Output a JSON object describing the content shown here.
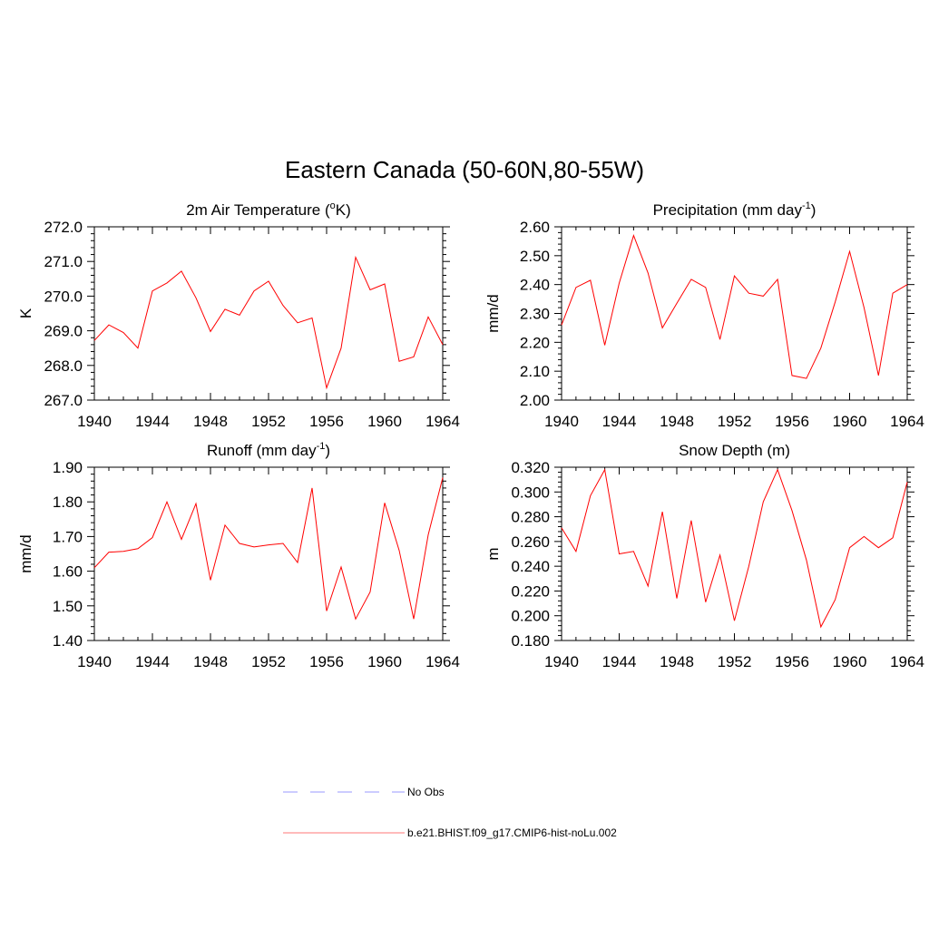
{
  "title": "Eastern Canada (50-60N,80-55W)",
  "legend": {
    "entries": [
      {
        "label": "No Obs",
        "color": "#9999ff",
        "style": "dashed"
      },
      {
        "label": "b.e21.BHIST.f09_g17.CMIP6-hist-noLu.002",
        "color": "#ff7777",
        "style": "solid"
      }
    ]
  },
  "chart_data": [
    {
      "type": "line",
      "title": "2m Air Temperature (°K)",
      "title_parts": [
        "2m Air Temperature (",
        "o",
        "K)"
      ],
      "xlabel": "",
      "ylabel": "K",
      "xlim": [
        1940,
        1964
      ],
      "ylim": [
        267.0,
        272.0
      ],
      "xticks": [
        "1940",
        "1944",
        "1948",
        "1952",
        "1956",
        "1960",
        "1964"
      ],
      "yticks": [
        "267.0",
        "268.0",
        "269.0",
        "270.0",
        "271.0",
        "272.0"
      ],
      "series": [
        {
          "color": "#ff0000",
          "x": [
            1940,
            1941,
            1942,
            1943,
            1944,
            1945,
            1946,
            1947,
            1948,
            1949,
            1950,
            1951,
            1952,
            1953,
            1954,
            1955,
            1956,
            1957,
            1958,
            1959,
            1960,
            1961,
            1962,
            1963,
            1964
          ],
          "y": [
            268.72,
            269.17,
            268.95,
            268.5,
            270.15,
            270.38,
            270.72,
            269.95,
            268.98,
            269.62,
            269.45,
            270.15,
            270.43,
            269.73,
            269.23,
            269.37,
            267.35,
            268.5,
            271.12,
            270.18,
            270.35,
            268.12,
            268.25,
            269.4,
            268.6
          ]
        }
      ]
    },
    {
      "type": "line",
      "title": "Precipitation (mm day-1)",
      "title_parts": [
        "Precipitation (mm day",
        "-1",
        ")"
      ],
      "xlabel": "",
      "ylabel": "mm/d",
      "xlim": [
        1940,
        1964
      ],
      "ylim": [
        2.0,
        2.6
      ],
      "xticks": [
        "1940",
        "1944",
        "1948",
        "1952",
        "1956",
        "1960",
        "1964"
      ],
      "yticks": [
        "2.00",
        "2.10",
        "2.20",
        "2.30",
        "2.40",
        "2.50",
        "2.60"
      ],
      "series": [
        {
          "color": "#ff0000",
          "x": [
            1940,
            1941,
            1942,
            1943,
            1944,
            1945,
            1946,
            1947,
            1948,
            1949,
            1950,
            1951,
            1952,
            1953,
            1954,
            1955,
            1956,
            1957,
            1958,
            1959,
            1960,
            1961,
            1962,
            1963,
            1964
          ],
          "y": [
            2.26,
            2.39,
            2.415,
            2.19,
            2.405,
            2.57,
            2.44,
            2.25,
            2.335,
            2.418,
            2.39,
            2.21,
            2.43,
            2.37,
            2.36,
            2.418,
            2.085,
            2.075,
            2.18,
            2.34,
            2.515,
            2.32,
            2.085,
            2.37,
            2.4
          ]
        }
      ]
    },
    {
      "type": "line",
      "title": "Runoff (mm day-1)",
      "title_parts": [
        "Runoff (mm day",
        "-1",
        ")"
      ],
      "xlabel": "",
      "ylabel": "mm/d",
      "xlim": [
        1940,
        1964
      ],
      "ylim": [
        1.4,
        1.9
      ],
      "xticks": [
        "1940",
        "1944",
        "1948",
        "1952",
        "1956",
        "1960",
        "1964"
      ],
      "yticks": [
        "1.40",
        "1.50",
        "1.60",
        "1.70",
        "1.80",
        "1.90"
      ],
      "series": [
        {
          "color": "#ff0000",
          "x": [
            1940,
            1941,
            1942,
            1943,
            1944,
            1945,
            1946,
            1947,
            1948,
            1949,
            1950,
            1951,
            1952,
            1953,
            1954,
            1955,
            1956,
            1957,
            1958,
            1959,
            1960,
            1961,
            1962,
            1963,
            1964
          ],
          "y": [
            1.61,
            1.655,
            1.657,
            1.665,
            1.697,
            1.8,
            1.692,
            1.795,
            1.574,
            1.733,
            1.68,
            1.67,
            1.676,
            1.68,
            1.625,
            1.84,
            1.485,
            1.612,
            1.462,
            1.54,
            1.797,
            1.66,
            1.462,
            1.705,
            1.87
          ]
        }
      ]
    },
    {
      "type": "line",
      "title": "Snow Depth (m)",
      "title_parts": [
        "Snow Depth (m)"
      ],
      "xlabel": "",
      "ylabel": "m",
      "xlim": [
        1940,
        1964
      ],
      "ylim": [
        0.18,
        0.32
      ],
      "xticks": [
        "1940",
        "1944",
        "1948",
        "1952",
        "1956",
        "1960",
        "1964"
      ],
      "yticks": [
        "0.180",
        "0.200",
        "0.220",
        "0.240",
        "0.260",
        "0.280",
        "0.300",
        "0.320"
      ],
      "series": [
        {
          "color": "#ff0000",
          "x": [
            1940,
            1941,
            1942,
            1943,
            1944,
            1945,
            1946,
            1947,
            1948,
            1949,
            1950,
            1951,
            1952,
            1953,
            1954,
            1955,
            1956,
            1957,
            1958,
            1959,
            1960,
            1961,
            1962,
            1963,
            1964
          ],
          "y": [
            0.271,
            0.252,
            0.297,
            0.318,
            0.25,
            0.252,
            0.224,
            0.284,
            0.214,
            0.277,
            0.211,
            0.249,
            0.196,
            0.24,
            0.292,
            0.318,
            0.285,
            0.245,
            0.191,
            0.213,
            0.255,
            0.264,
            0.255,
            0.263,
            0.308
          ]
        }
      ]
    }
  ]
}
